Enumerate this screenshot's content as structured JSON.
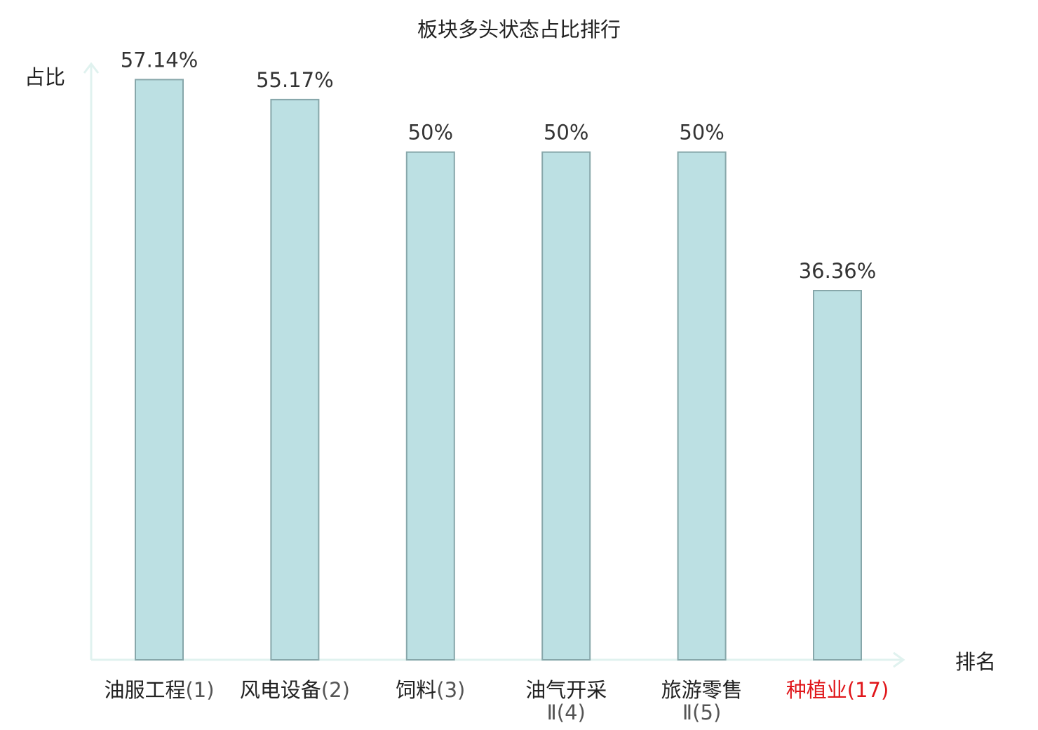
{
  "chart_data": {
    "type": "bar",
    "title": "板块多头状态占比排行",
    "ylabel": "占比",
    "xlabel": "排名",
    "ylim": [
      0,
      60
    ],
    "grid": false,
    "categories": [
      {
        "name": "油服工程",
        "rank": "(1)",
        "highlight": false
      },
      {
        "name": "风电设备",
        "rank": "(2)",
        "highlight": false
      },
      {
        "name": "饲料",
        "rank": "(3)",
        "highlight": false
      },
      {
        "name": "油气开采Ⅱ",
        "rank": "(4)",
        "highlight": false
      },
      {
        "name": "旅游零售Ⅱ",
        "rank": "(5)",
        "highlight": false
      },
      {
        "name": "种植业",
        "rank": "(17)",
        "highlight": true
      }
    ],
    "values": [
      57.14,
      55.17,
      50,
      50,
      50,
      36.36
    ],
    "value_labels": [
      "57.14%",
      "55.17%",
      "50%",
      "50%",
      "50%",
      "36.36%"
    ]
  },
  "colors": {
    "bar_fill": "#bce0e3",
    "bar_stroke": "#87a7aa",
    "axis": "#e0f2ef",
    "text": "#333333",
    "rank_text": "#555555",
    "highlight": "#e0161a"
  }
}
